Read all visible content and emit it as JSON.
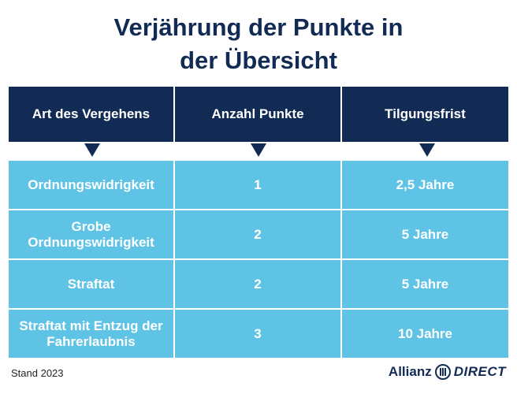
{
  "title": {
    "line1": "Verjährung der Punkte in",
    "line2": "der Übersicht"
  },
  "table": {
    "headers": [
      "Art des Vergehens",
      "Anzahl Punkte",
      "Tilgungsfrist"
    ],
    "rows": [
      {
        "offense": "Ordnungswidrigkeit",
        "points": "1",
        "period": "2,5 Jahre"
      },
      {
        "offense": "Grobe Ordnungswidrigkeit",
        "points": "2",
        "period": "5 Jahre"
      },
      {
        "offense": "Straftat",
        "points": "2",
        "period": "5 Jahre"
      },
      {
        "offense": "Straftat mit Entzug der Fahrerlaubnis",
        "points": "3",
        "period": "10 Jahre"
      }
    ]
  },
  "footer": {
    "stand": "Stand 2023",
    "brand_left": "Allianz",
    "brand_right": "DIRECT"
  },
  "colors": {
    "navy": "#122b54",
    "sky": "#5fc3e6"
  }
}
